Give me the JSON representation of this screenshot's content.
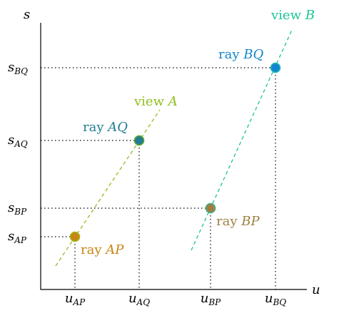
{
  "axes": {
    "vertical_label": "s",
    "horizontal_label": "u"
  },
  "s_ticks": [
    {
      "id": "BQ",
      "base": "s",
      "sub": "BQ"
    },
    {
      "id": "AQ",
      "base": "s",
      "sub": "AQ"
    },
    {
      "id": "BP",
      "base": "s",
      "sub": "BP"
    },
    {
      "id": "AP",
      "base": "s",
      "sub": "AP"
    }
  ],
  "u_ticks": [
    {
      "id": "AP",
      "base": "u",
      "sub": "AP"
    },
    {
      "id": "AQ",
      "base": "u",
      "sub": "AQ"
    },
    {
      "id": "BP",
      "base": "u",
      "sub": "BP"
    },
    {
      "id": "BQ",
      "base": "u",
      "sub": "BQ"
    }
  ],
  "views": [
    {
      "id": "A",
      "prefix": "view ",
      "name": "A",
      "color": "#8fbf1f"
    },
    {
      "id": "B",
      "prefix": "view ",
      "name": "B",
      "color": "#1bc596"
    }
  ],
  "rays": [
    {
      "id": "AP",
      "prefix": "ray ",
      "name": "AP",
      "color": "#c98512",
      "dot_fill": "#c98512",
      "dot_ring": "#a2b520"
    },
    {
      "id": "AQ",
      "prefix": "ray ",
      "name": "AQ",
      "color": "#237e94",
      "dot_fill": "#247d95",
      "dot_ring": "#5aa62a"
    },
    {
      "id": "BP",
      "prefix": "ray ",
      "name": "BP",
      "color": "#9d8142",
      "dot_fill": "#a27d3e",
      "dot_ring": "#38b28a"
    },
    {
      "id": "BQ",
      "prefix": "ray ",
      "name": "BQ",
      "color": "#1286cc",
      "dot_fill": "#1285d0",
      "dot_ring": "#22b9b1"
    }
  ]
}
